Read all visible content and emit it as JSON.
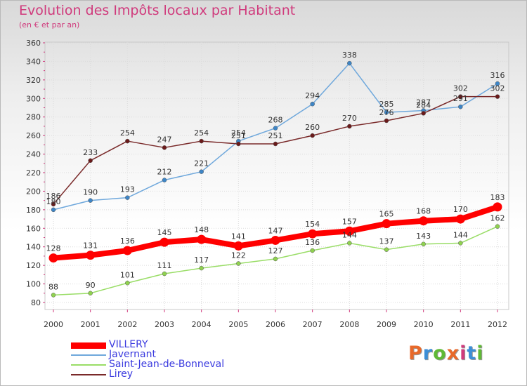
{
  "title": "Evolution des Impôts locaux par Habitant",
  "subtitle": "(en € et par an)",
  "logo_text": "Proxiti",
  "colors": {
    "title": "#d03a7c",
    "legend_text": "#3a3adf"
  },
  "chart_data": {
    "type": "line",
    "title": "Evolution des Impôts locaux par Habitant",
    "subtitle": "(en € et par an)",
    "x": [
      "2000",
      "2001",
      "2002",
      "2003",
      "2004",
      "2005",
      "2006",
      "2007",
      "2008",
      "2009",
      "2010",
      "2011",
      "2012"
    ],
    "ylim": [
      80,
      360
    ],
    "yticks": [
      80,
      100,
      120,
      140,
      160,
      180,
      200,
      220,
      240,
      260,
      280,
      300,
      320,
      340,
      360
    ],
    "grid": true,
    "legend_position": "bottom-left",
    "series": [
      {
        "name": "VILLERY",
        "color": "#ff0000",
        "values": [
          128,
          131,
          136,
          145,
          148,
          141,
          147,
          154,
          157,
          165,
          168,
          170,
          183
        ]
      },
      {
        "name": "Javernant",
        "color": "#6fa8dc",
        "values": [
          180,
          190,
          193,
          212,
          221,
          254,
          268,
          294,
          338,
          285,
          287,
          291,
          316
        ]
      },
      {
        "name": "Saint-Jean-de-Bonneval",
        "color": "#99dd66",
        "values": [
          88,
          90,
          101,
          111,
          117,
          122,
          127,
          136,
          144,
          137,
          143,
          144,
          162
        ]
      },
      {
        "name": "Lirey",
        "color": "#7a2a2a",
        "values": [
          186,
          233,
          254,
          247,
          254,
          251,
          251,
          260,
          270,
          276,
          284,
          302,
          302
        ]
      }
    ]
  }
}
